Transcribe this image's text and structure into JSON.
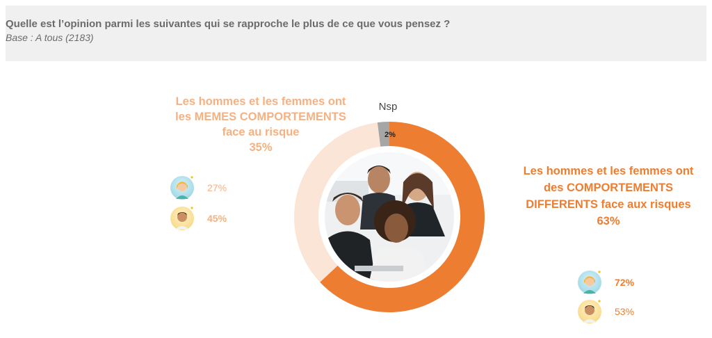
{
  "header": {
    "question": "Quelle est l’opinion parmi les suivantes qui se rapproche le plus de ce que vous pensez ?",
    "base": "Base : A tous (2183)"
  },
  "chart_data": {
    "type": "pie",
    "donut": true,
    "slices": [
      {
        "label": "Les hommes et les femmes ont des COMPORTEMENTS DIFFERENTS face aux risques",
        "value": 63,
        "color": "#ed7d31"
      },
      {
        "label": "Les hommes et les femmes ont les MEMES COMPORTEMENTS face au risque",
        "value": 35,
        "color": "#fbe5d6"
      },
      {
        "label": "Nsp",
        "value": 2,
        "color": "#a6a6a6"
      }
    ]
  },
  "labels": {
    "same_line1": "Les hommes et les femmes ont",
    "same_line2": "les MEMES COMPORTEMENTS",
    "same_line3": "face au risque",
    "same_pct": "35%",
    "diff_line1": "Les hommes et les femmes ont",
    "diff_line2": "des COMPORTEMENTS",
    "diff_line3": "DIFFERENTS face aux risques",
    "diff_pct": "63%",
    "nsp": "Nsp",
    "nsp_pct": "2%"
  },
  "breakdown": {
    "same": {
      "women": "27%",
      "men": "45%"
    },
    "diff": {
      "women": "72%",
      "men": "53%"
    }
  },
  "icons": {
    "woman": "woman-avatar-icon",
    "man": "man-avatar-icon",
    "photo": "group-photo-people-at-laptop"
  }
}
